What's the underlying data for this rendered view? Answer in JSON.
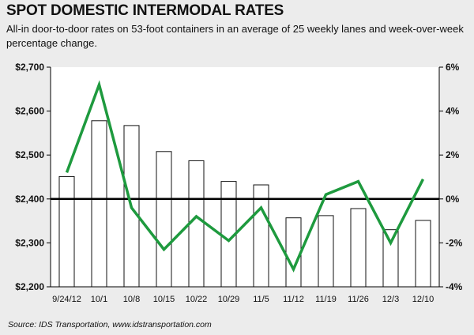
{
  "title": "SPOT DOMESTIC INTERMODAL RATES",
  "subtitle": "All-in door-to-door rates on 53-foot containers in an average of 25 weekly lanes and week-over-week percentage change.",
  "source": "Source: IDS Transportation, www.idstransportation.com",
  "colors": {
    "bar_fill": "#ffffff",
    "bar_stroke": "#111111",
    "line": "#1e9a3e",
    "background": "#ececec",
    "plot_background": "#ffffff"
  },
  "chart_data": {
    "type": "bar",
    "categories": [
      "9/24/12",
      "10/1",
      "10/8",
      "10/15",
      "10/22",
      "10/29",
      "11/5",
      "11/12",
      "11/19",
      "11/26",
      "12/3",
      "12/10"
    ],
    "series": [
      {
        "type": "bar",
        "axis": "left",
        "values": [
          2451,
          2578,
          2567,
          2508,
          2487,
          2440,
          2432,
          2357,
          2362,
          2378,
          2330,
          2351
        ]
      },
      {
        "type": "line",
        "axis": "right",
        "values": [
          1.2,
          5.2,
          -0.4,
          -2.3,
          -0.8,
          -1.9,
          -0.4,
          -3.2,
          0.2,
          0.8,
          -2.0,
          0.9
        ]
      }
    ],
    "y_left": {
      "ticks": [
        "$2,700",
        "$2,600",
        "$2,500",
        "$2,400",
        "$2,300",
        "$2,200"
      ],
      "range": [
        2200,
        2700
      ]
    },
    "y_right": {
      "ticks": [
        "6%",
        "4%",
        "2%",
        "0%",
        "-2%",
        "-4%"
      ],
      "range": [
        -4,
        6
      ]
    },
    "grid": false,
    "reference_line": {
      "axis": "left",
      "value": 2400
    }
  }
}
